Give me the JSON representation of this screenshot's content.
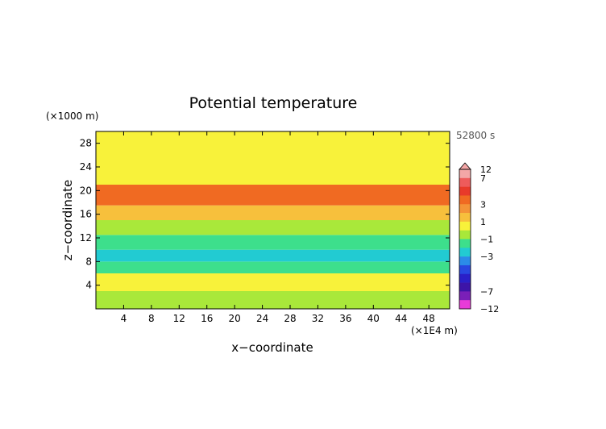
{
  "chart_data": {
    "type": "heatmap",
    "title": "Potential temperature",
    "xlabel": "x−coordinate",
    "ylabel": "z−coordinate",
    "x_unit": "(×1E4 m)",
    "y_unit": "(×1000 m)",
    "time_label": "52800 s",
    "xlim": [
      0,
      51
    ],
    "ylim": [
      0,
      30
    ],
    "x_ticks": [
      4,
      8,
      12,
      16,
      20,
      24,
      28,
      32,
      36,
      40,
      44,
      48
    ],
    "y_ticks": [
      4,
      8,
      12,
      16,
      20,
      24,
      28
    ],
    "colorbar_labels": [
      12,
      7,
      3,
      1,
      -1,
      -3,
      -7,
      -12
    ],
    "colorbar_levels": [
      {
        "lo": 7,
        "hi": 12,
        "color": "#f3a6a6"
      },
      {
        "lo": 5,
        "hi": 7,
        "color": "#ee5b5b"
      },
      {
        "lo": 4,
        "hi": 5,
        "color": "#e83a2a"
      },
      {
        "lo": 3,
        "hi": 4,
        "color": "#f06a22"
      },
      {
        "lo": 2,
        "hi": 3,
        "color": "#f49437"
      },
      {
        "lo": 1,
        "hi": 2,
        "color": "#f7c03c"
      },
      {
        "lo": 0,
        "hi": 1,
        "color": "#f8f23a"
      },
      {
        "lo": -1,
        "hi": 0,
        "color": "#a9e83a"
      },
      {
        "lo": -2,
        "hi": -1,
        "color": "#3ddf8c"
      },
      {
        "lo": -3,
        "hi": -2,
        "color": "#22cbd2"
      },
      {
        "lo": -4,
        "hi": -3,
        "color": "#2b8ce8"
      },
      {
        "lo": -5,
        "hi": -4,
        "color": "#2847e0"
      },
      {
        "lo": -6,
        "hi": -5,
        "color": "#2a1fc8"
      },
      {
        "lo": -7,
        "hi": -6,
        "color": "#3d14a8"
      },
      {
        "lo": -9,
        "hi": -7,
        "color": "#7a1fb8"
      },
      {
        "lo": -12,
        "hi": -9,
        "color": "#e83bd8"
      }
    ],
    "layers": [
      {
        "z_range": [
          0,
          3
        ],
        "value": -0.5
      },
      {
        "z_range": [
          3,
          6
        ],
        "value": 0.3
      },
      {
        "z_range": [
          6,
          8
        ],
        "value": -1.5
      },
      {
        "z_range": [
          8,
          10
        ],
        "value": -2.6
      },
      {
        "z_range": [
          10,
          12.5
        ],
        "value": -1.8
      },
      {
        "z_range": [
          12.5,
          15
        ],
        "value": -0.6
      },
      {
        "z_range": [
          15,
          17.5
        ],
        "value": 1.0
      },
      {
        "z_range": [
          17.5,
          21
        ],
        "value": 3.0
      },
      {
        "z_range": [
          21,
          24
        ],
        "value": 0.8
      },
      {
        "z_range": [
          24,
          30
        ],
        "value": 0.2
      }
    ]
  }
}
